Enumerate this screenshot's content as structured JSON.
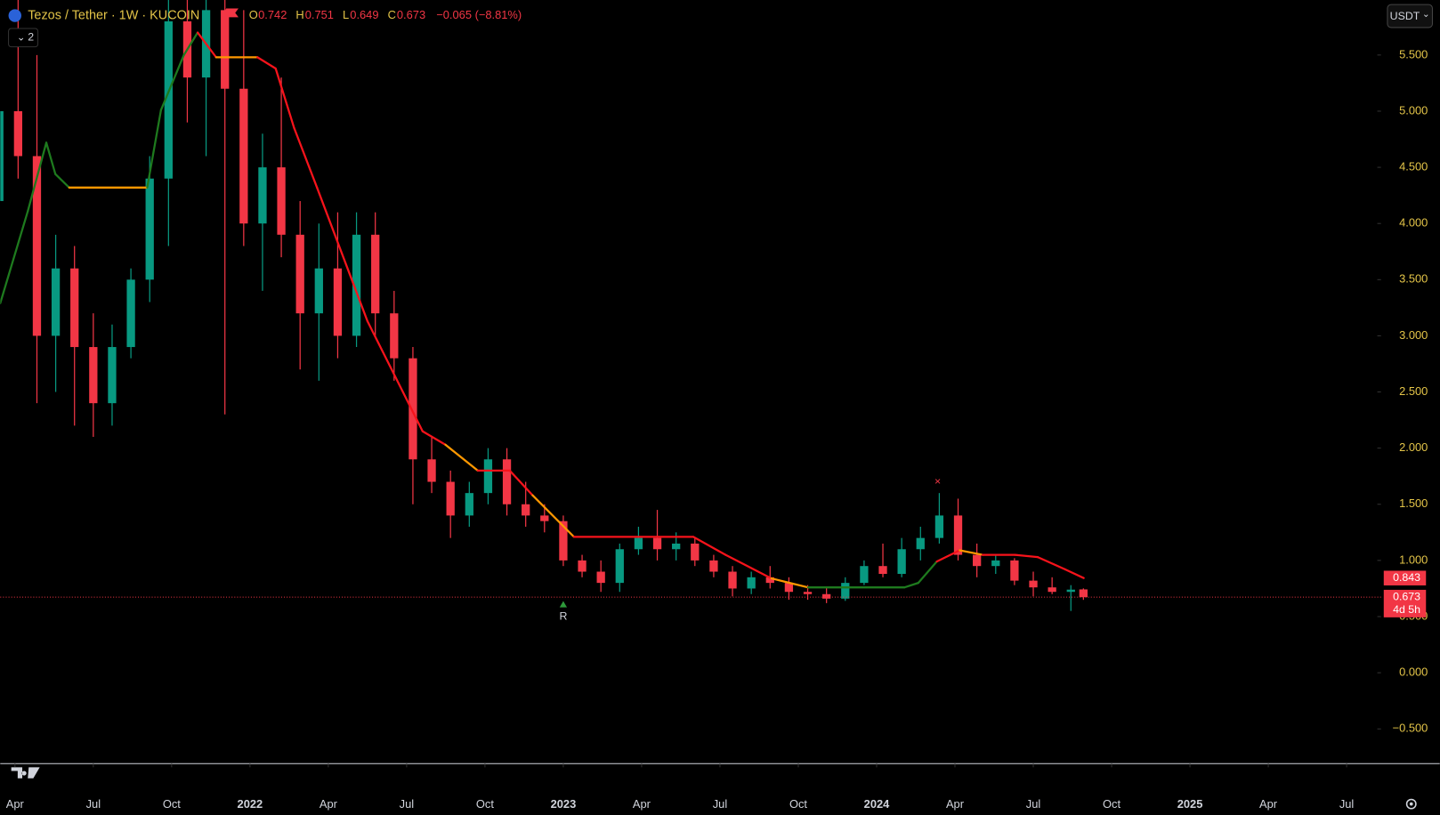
{
  "chart_data": {
    "type": "candlestick",
    "title": "Tezos / Tether · 1W · KUCOIN",
    "ohlc_labels": [
      "O",
      "H",
      "L",
      "C"
    ],
    "change": "−0.065 (−8.81%)",
    "currency": "USDT",
    "indicator_count": "2",
    "countdown": "4d 5h",
    "up_color": "#089981",
    "down_color": "#f23645",
    "x": [
      2021.2,
      2021.26,
      2021.32,
      2021.38,
      2021.44,
      2021.5,
      2021.56,
      2021.62,
      2021.68,
      2021.74,
      2021.8,
      2021.86,
      2021.92,
      2021.98,
      2022.04,
      2022.1,
      2022.16,
      2022.22,
      2022.28,
      2022.34,
      2022.4,
      2022.46,
      2022.52,
      2022.58,
      2022.64,
      2022.7,
      2022.76,
      2022.82,
      2022.88,
      2022.94,
      2023,
      2023.06,
      2023.12,
      2023.18,
      2023.24,
      2023.3,
      2023.36,
      2023.42,
      2023.48,
      2023.54,
      2023.6,
      2023.66,
      2023.72,
      2023.78,
      2023.84,
      2023.9,
      2023.96,
      2024.02,
      2024.08,
      2024.14,
      2024.2,
      2024.26,
      2024.32,
      2024.38,
      2024.44,
      2024.5,
      2024.56,
      2024.62,
      2024.66
    ],
    "open": [
      4.2,
      5.0,
      4.6,
      3.0,
      3.6,
      2.9,
      2.4,
      2.9,
      3.5,
      4.4,
      5.8,
      5.3,
      5.9,
      5.2,
      4.0,
      4.5,
      3.9,
      3.2,
      3.6,
      3.0,
      3.9,
      3.2,
      2.8,
      1.9,
      1.7,
      1.4,
      1.6,
      1.9,
      1.5,
      1.4,
      1.35,
      1.0,
      0.9,
      0.8,
      1.1,
      1.2,
      1.1,
      1.15,
      1.0,
      0.9,
      0.75,
      0.85,
      0.8,
      0.72,
      0.7,
      0.66,
      0.8,
      0.95,
      0.88,
      1.1,
      1.2,
      1.4,
      1.05,
      0.95,
      1.0,
      0.82,
      0.76,
      0.72,
      0.742
    ],
    "high": [
      5.2,
      6.2,
      5.5,
      3.9,
      3.8,
      3.2,
      3.1,
      3.6,
      4.6,
      6.2,
      6.2,
      6.1,
      6.2,
      5.9,
      4.8,
      5.3,
      4.2,
      4.0,
      4.1,
      4.1,
      4.1,
      3.4,
      2.9,
      2.1,
      1.8,
      1.7,
      2.0,
      2.0,
      1.7,
      1.5,
      1.4,
      1.05,
      1.0,
      1.15,
      1.3,
      1.45,
      1.25,
      1.2,
      1.05,
      0.95,
      0.9,
      0.95,
      0.85,
      0.78,
      0.76,
      0.85,
      1.0,
      1.15,
      1.2,
      1.3,
      1.6,
      1.55,
      1.15,
      1.05,
      1.02,
      0.9,
      0.85,
      0.78,
      0.751
    ],
    "low": [
      3.3,
      4.4,
      2.4,
      2.5,
      2.2,
      2.1,
      2.2,
      2.8,
      3.3,
      3.8,
      4.9,
      4.6,
      2.3,
      3.8,
      3.4,
      3.7,
      2.7,
      2.6,
      2.8,
      2.9,
      3.0,
      2.6,
      1.5,
      1.6,
      1.2,
      1.3,
      1.5,
      1.4,
      1.3,
      1.25,
      0.95,
      0.85,
      0.72,
      0.72,
      1.05,
      1.0,
      1.0,
      0.95,
      0.85,
      0.68,
      0.7,
      0.75,
      0.65,
      0.65,
      0.62,
      0.64,
      0.78,
      0.85,
      0.85,
      1.0,
      1.15,
      1.0,
      0.85,
      0.88,
      0.78,
      0.68,
      0.7,
      0.55,
      0.649
    ],
    "close": [
      5.0,
      4.6,
      3.0,
      3.6,
      2.9,
      2.4,
      2.9,
      3.5,
      4.4,
      5.8,
      5.3,
      5.9,
      5.2,
      4.0,
      4.5,
      3.9,
      3.2,
      3.6,
      3.0,
      3.9,
      3.2,
      2.8,
      1.9,
      1.7,
      1.4,
      1.6,
      1.9,
      1.5,
      1.4,
      1.35,
      1.0,
      0.9,
      0.8,
      1.1,
      1.2,
      1.1,
      1.15,
      1.0,
      0.9,
      0.75,
      0.85,
      0.8,
      0.72,
      0.7,
      0.66,
      0.8,
      0.95,
      0.88,
      1.1,
      1.2,
      1.4,
      1.05,
      0.95,
      1.0,
      0.82,
      0.76,
      0.72,
      0.74,
      0.673
    ],
    "indicator": {
      "x": [
        2021.203,
        2021.291,
        2021.35,
        2021.379,
        2021.423,
        2021.672,
        2021.716,
        2021.789,
        2021.833,
        2021.892,
        2022.024,
        2022.082,
        2022.141,
        2022.214,
        2022.375,
        2022.551,
        2022.624,
        2022.727,
        2022.829,
        2022.902,
        2023.034,
        2023.415,
        2023.518,
        2023.664,
        2023.781,
        2024.089,
        2024.133,
        2024.192,
        2024.265,
        2024.338,
        2024.441,
        2024.514,
        2024.602,
        2024.661
      ],
      "values": [
        3.29,
        4.11,
        4.72,
        4.44,
        4.32,
        4.32,
        5.01,
        5.5,
        5.7,
        5.48,
        5.48,
        5.38,
        4.85,
        4.32,
        3.13,
        2.15,
        2.03,
        1.8,
        1.8,
        1.58,
        1.21,
        1.21,
        1.05,
        0.84,
        0.76,
        0.76,
        0.8,
        0.99,
        1.09,
        1.05,
        1.05,
        1.03,
        0.92,
        0.843
      ],
      "segment_colors": [
        "#1e7a1e",
        "#1e7a1e",
        "#1e7a1e",
        "#1e7a1e",
        "#ff9800",
        "#1e7a1e",
        "#1e7a1e",
        "#1e7a1e",
        "#f7131b",
        "#ff9800",
        "#f7131b",
        "#f7131b",
        "#f7131b",
        "#f7131b",
        "#f7131b",
        "#f7131b",
        "#ff9800",
        "#f7131b",
        "#f7131b",
        "#ff9800",
        "#f7131b",
        "#f7131b",
        "#f7131b",
        "#ff9800",
        "#1e7a1e",
        "#1e7a1e",
        "#1e7a1e",
        "#f7131b",
        "#ff9800",
        "#f7131b",
        "#f7131b",
        "#f7131b",
        "#f7131b"
      ]
    },
    "annotations": [
      {
        "text": "R",
        "x": 2023.0,
        "y": 0.5,
        "color": "#d1d4dc"
      },
      {
        "text": "×",
        "x": 2024.195,
        "y": 1.7,
        "color": "#f23645"
      }
    ],
    "xlim": [
      2021.203,
      2025.598
    ],
    "xticks": [
      {
        "value": 2021.25,
        "label": "Apr"
      },
      {
        "value": 2021.5,
        "label": "Jul"
      },
      {
        "value": 2021.75,
        "label": "Oct"
      },
      2022,
      {
        "value": 2022.25,
        "label": "Apr"
      },
      {
        "value": 2022.5,
        "label": "Jul"
      },
      {
        "value": 2022.75,
        "label": "Oct"
      },
      2023,
      {
        "value": 2023.25,
        "label": "Apr"
      },
      {
        "value": 2023.5,
        "label": "Jul"
      },
      {
        "value": 2023.75,
        "label": "Oct"
      },
      2024,
      {
        "value": 2024.25,
        "label": "Apr"
      },
      {
        "value": 2024.5,
        "label": "Jul"
      },
      {
        "value": 2024.75,
        "label": "Oct"
      },
      2025,
      {
        "value": 2025.25,
        "label": "Apr"
      },
      {
        "value": 2025.5,
        "label": "Jul"
      }
    ],
    "ylim": [
      -0.809,
      5.99
    ],
    "yticks": [
      {
        "value": -0.5,
        "label": "−0.500"
      },
      {
        "value": 0,
        "label": "0.000"
      },
      {
        "value": 0.5,
        "label": "0.500"
      },
      {
        "value": 1,
        "label": "1.000"
      },
      {
        "value": 1.5,
        "label": "1.500"
      },
      {
        "value": 2,
        "label": "2.000"
      },
      {
        "value": 2.5,
        "label": "2.500"
      },
      {
        "value": 3,
        "label": "3.000"
      },
      {
        "value": 3.5,
        "label": "3.500"
      },
      {
        "value": 4,
        "label": "4.000"
      },
      {
        "value": 4.5,
        "label": "4.500"
      },
      {
        "value": 5,
        "label": "5.000"
      },
      {
        "value": 5.5,
        "label": "5.500"
      }
    ]
  }
}
